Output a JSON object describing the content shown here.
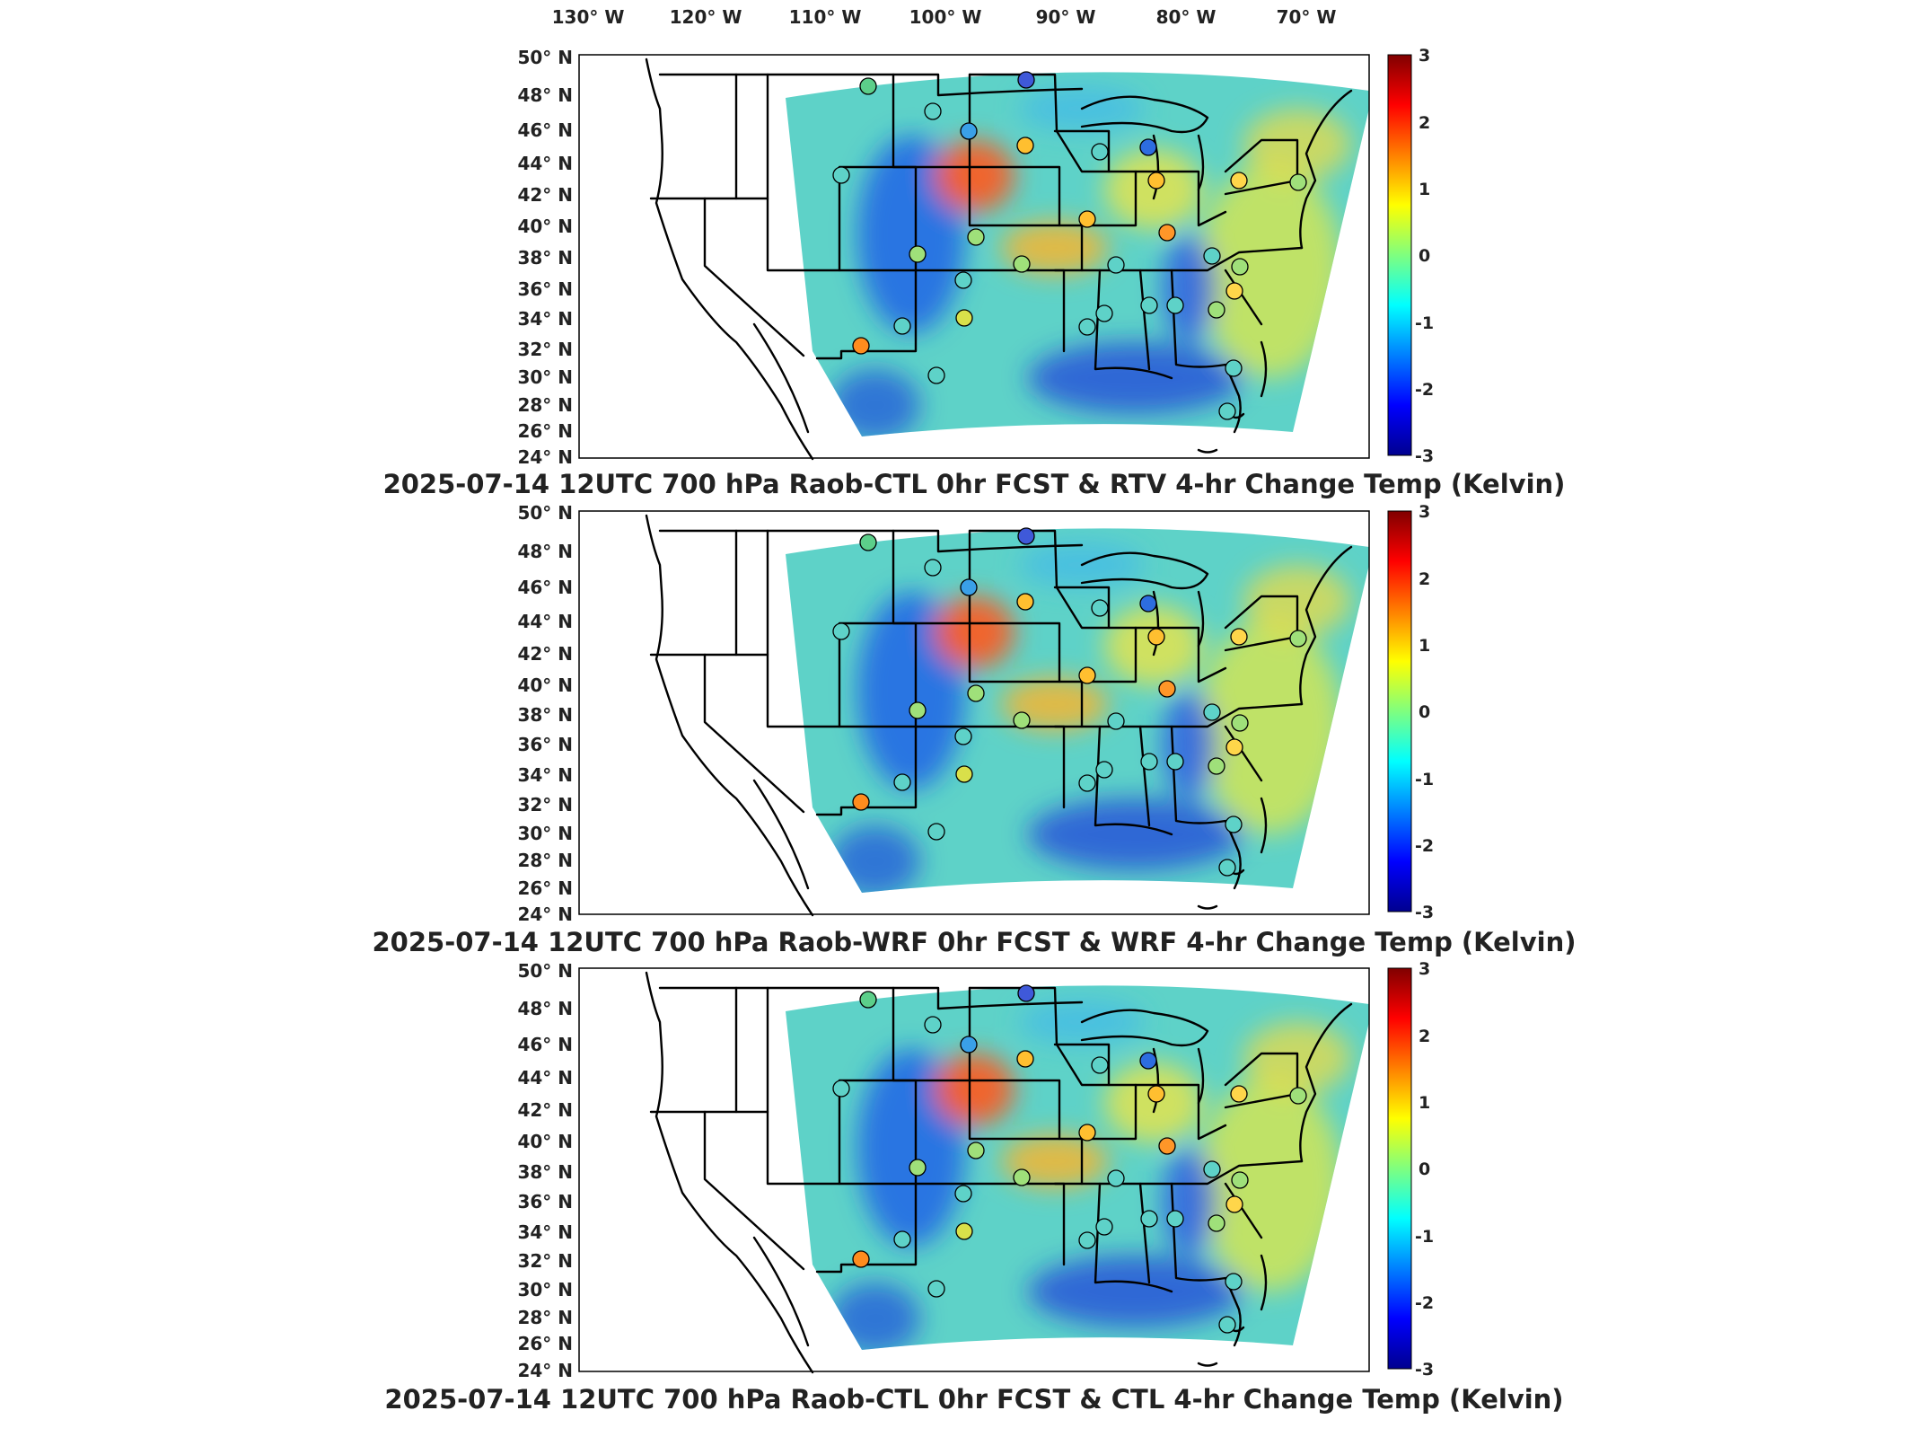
{
  "top_axis": {
    "lon_labels": [
      "130° W",
      "120° W",
      "110° W",
      "100° W",
      "90° W",
      "80° W",
      "70° W"
    ]
  },
  "lat_labels": [
    "50° N",
    "48° N",
    "46° N",
    "44° N",
    "42° N",
    "40° N",
    "38° N",
    "36° N",
    "34° N",
    "32° N",
    "30° N",
    "28° N",
    "26° N",
    "24° N"
  ],
  "colorbar": {
    "ticks": [
      "3",
      "2",
      "1",
      "0",
      "-1",
      "-2",
      "-3"
    ],
    "colormap": "jet",
    "range": [
      -3,
      3
    ]
  },
  "panels": [
    {
      "title": "2025-07-14 12UTC 700 hPa Raob-CTL 0hr FCST & RTV 4-hr Change Temp (Kelvin)"
    },
    {
      "title": "2025-07-14 12UTC 700 hPa Raob-WRF 0hr FCST & WRF 4-hr Change Temp (Kelvin)"
    },
    {
      "title": "2025-07-14 12UTC 700 hPa Raob-CTL 0hr FCST & CTL 4-hr Change Temp (Kelvin)"
    }
  ],
  "colors": {
    "map_border": "#000000",
    "land_outside_domain": "#ffffff",
    "field_base": "#5ed2c8"
  }
}
